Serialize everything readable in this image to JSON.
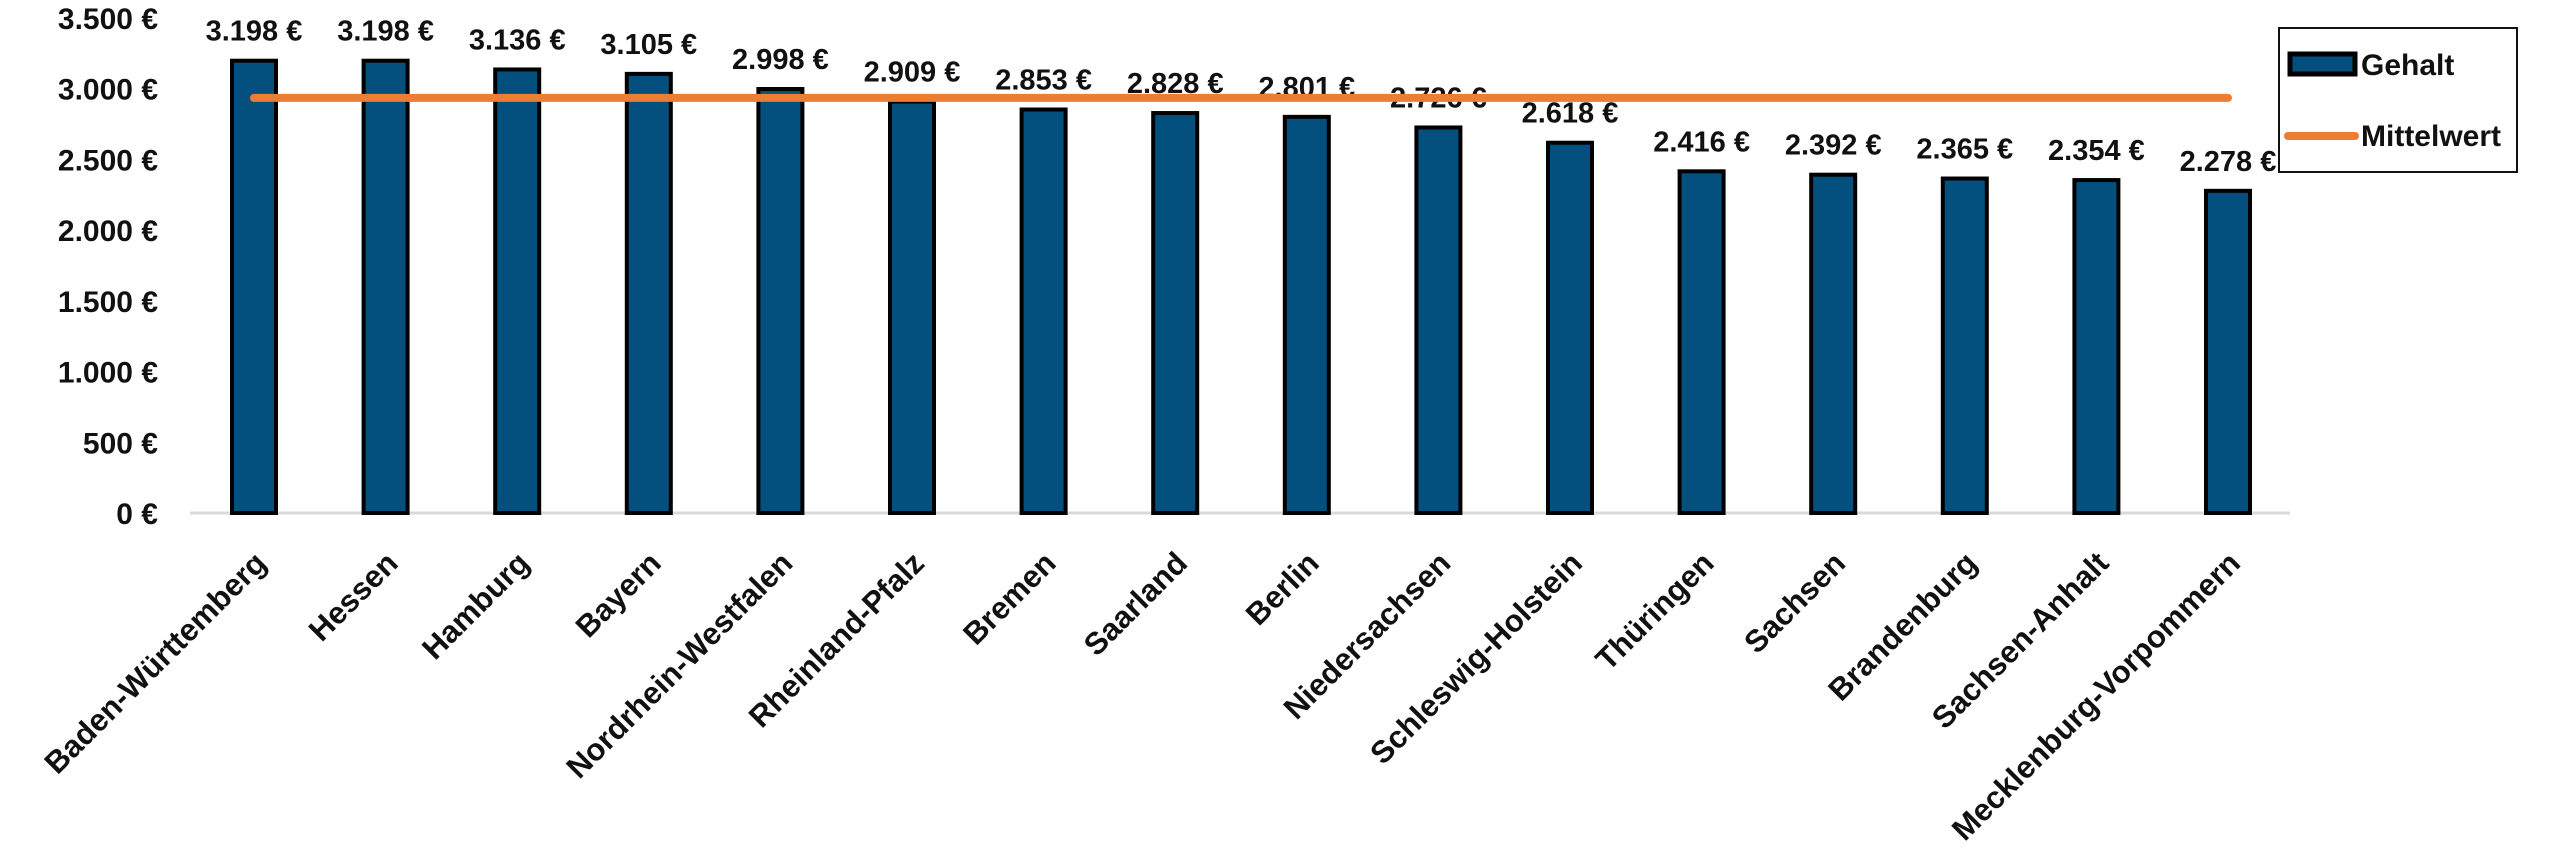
{
  "chart_data": {
    "type": "bar",
    "title": "",
    "xlabel": "",
    "ylabel": "",
    "ylim": [
      0,
      3500
    ],
    "yticks": [
      0,
      500,
      1000,
      1500,
      2000,
      2500,
      3000,
      3500
    ],
    "ytick_labels": [
      "0 €",
      "500 €",
      "1.000 €",
      "1.500 €",
      "2.000 €",
      "2.500 €",
      "3.000 €",
      "3.500 €"
    ],
    "grid": false,
    "legend_position": "top-right",
    "categories": [
      "Baden-Württemberg",
      "Hessen",
      "Hamburg",
      "Bayern",
      "Nordrhein-Westfalen",
      "Rheinland-Pfalz",
      "Bremen",
      "Saarland",
      "Berlin",
      "Niedersachsen",
      "Schleswig-Holstein",
      "Thüringen",
      "Sachsen",
      "Brandenburg",
      "Sachsen-Anhalt",
      "Mecklenburg-Vorpommern"
    ],
    "series": [
      {
        "name": "Gehalt",
        "type": "bar",
        "color": "#03507f",
        "values": [
          3198,
          3198,
          3136,
          3105,
          2998,
          2909,
          2853,
          2828,
          2801,
          2726,
          2618,
          2416,
          2392,
          2365,
          2354,
          2278
        ],
        "labels": [
          "3.198 €",
          "3.198 €",
          "3.136 €",
          "3.105 €",
          "2.998 €",
          "2.909 €",
          "2.853 €",
          "2.828 €",
          "2.801 €",
          "2.726 €",
          "2.618 €",
          "2.416 €",
          "2.392 €",
          "2.365 €",
          "2.354 €",
          "2.278 €"
        ]
      },
      {
        "name": "Mittelwert",
        "type": "line",
        "color": "#ed7d31",
        "value": 2935
      }
    ]
  }
}
